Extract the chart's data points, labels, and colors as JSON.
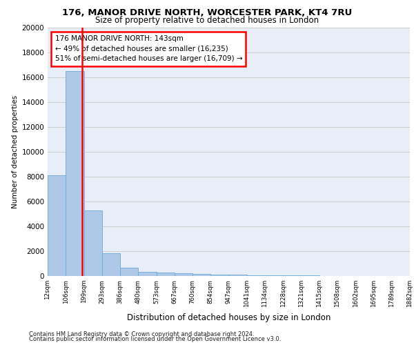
{
  "title1": "176, MANOR DRIVE NORTH, WORCESTER PARK, KT4 7RU",
  "title2": "Size of property relative to detached houses in London",
  "xlabel": "Distribution of detached houses by size in London",
  "ylabel": "Number of detached properties",
  "annotation_title": "176 MANOR DRIVE NORTH: 143sqm",
  "annotation_line1": "← 49% of detached houses are smaller (16,235)",
  "annotation_line2": "51% of semi-detached houses are larger (16,709) →",
  "footer1": "Contains HM Land Registry data © Crown copyright and database right 2024.",
  "footer2": "Contains public sector information licensed under the Open Government Licence v3.0.",
  "bar_values": [
    8100,
    16500,
    5300,
    1850,
    650,
    350,
    280,
    220,
    175,
    130,
    90,
    70,
    55,
    40,
    30,
    20,
    15,
    10,
    5,
    3
  ],
  "categories": [
    "12sqm",
    "106sqm",
    "199sqm",
    "293sqm",
    "386sqm",
    "480sqm",
    "573sqm",
    "667sqm",
    "760sqm",
    "854sqm",
    "947sqm",
    "1041sqm",
    "1134sqm",
    "1228sqm",
    "1321sqm",
    "1415sqm",
    "1508sqm",
    "1602sqm",
    "1695sqm",
    "1789sqm",
    "1882sqm"
  ],
  "bar_color": "#aec8e8",
  "bar_edge_color": "#6aaad4",
  "annotation_box_color": "#cc0000",
  "ylim": [
    0,
    20000
  ],
  "yticks": [
    0,
    2000,
    4000,
    6000,
    8000,
    10000,
    12000,
    14000,
    16000,
    18000,
    20000
  ],
  "grid_color": "#cccccc",
  "bg_color": "#e8eef8",
  "property_bar_index": 1.42
}
